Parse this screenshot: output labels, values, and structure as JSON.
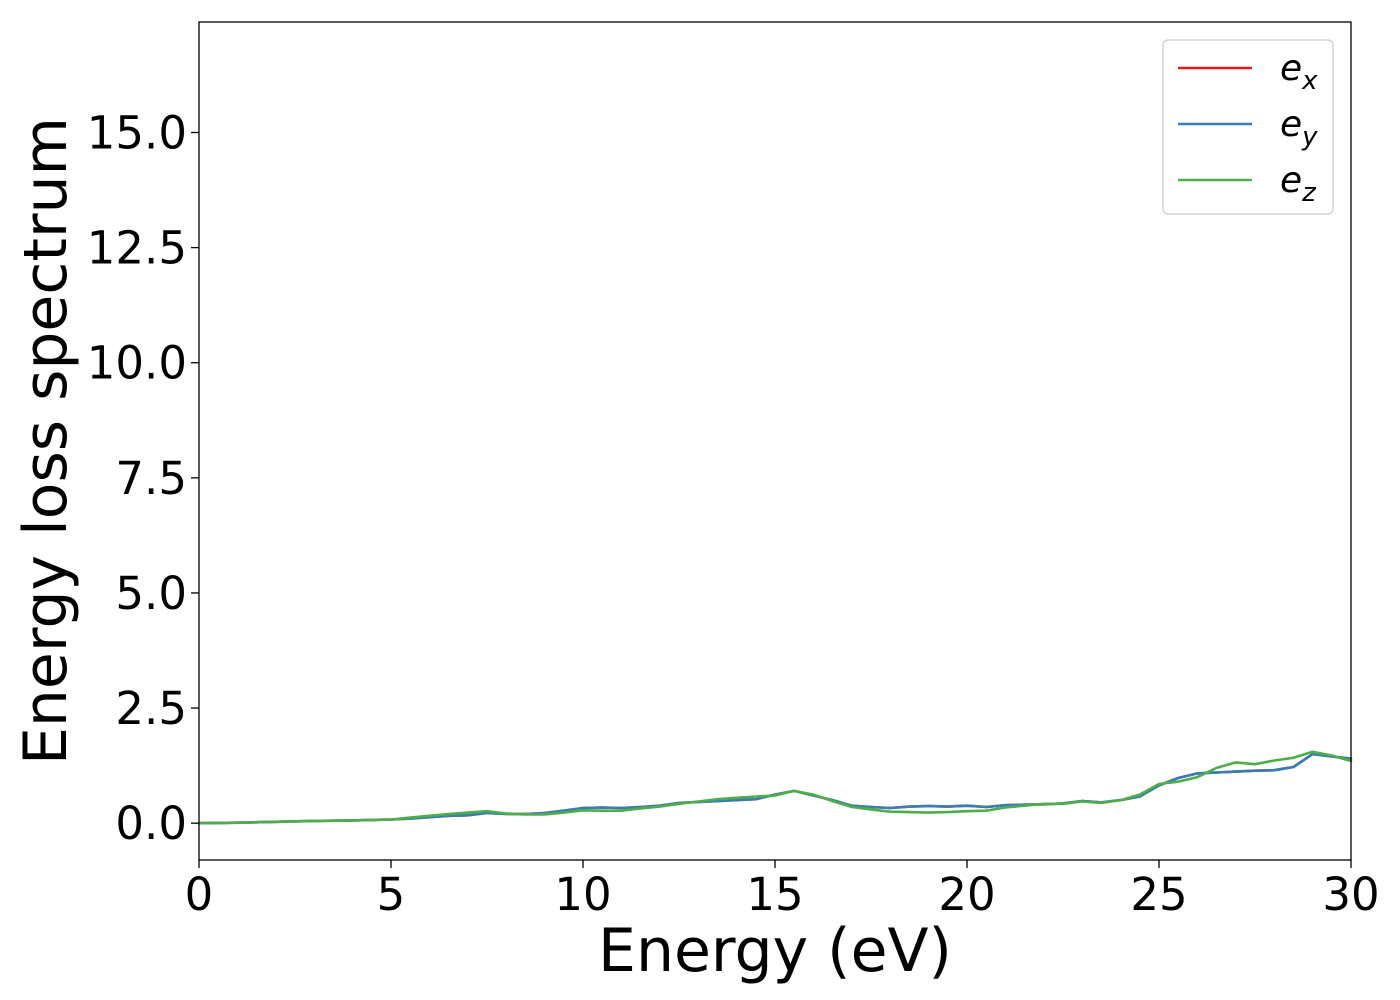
{
  "chart_data": {
    "type": "line",
    "xlabel": "Energy (eV)",
    "ylabel": "Energy loss spectrum",
    "xlim": [
      0,
      30
    ],
    "ylim": [
      -0.8,
      17.4
    ],
    "xticks": [
      0,
      5,
      10,
      15,
      20,
      25,
      30
    ],
    "xtick_labels": [
      "0",
      "5",
      "10",
      "15",
      "20",
      "25",
      "30"
    ],
    "yticks": [
      0.0,
      2.5,
      5.0,
      7.5,
      10.0,
      12.5,
      15.0
    ],
    "ytick_labels": [
      "0.0",
      "2.5",
      "5.0",
      "7.5",
      "10.0",
      "12.5",
      "15.0"
    ],
    "grid": false,
    "legend_position": "top-right",
    "x": [
      0,
      1,
      2,
      3,
      4,
      5,
      5.5,
      6,
      6.5,
      7,
      7.5,
      8,
      8.5,
      9,
      9.5,
      10,
      10.5,
      11,
      11.5,
      12,
      12.5,
      13,
      13.5,
      14,
      14.5,
      15,
      15.5,
      16,
      16.5,
      17,
      17.5,
      18,
      18.5,
      19,
      19.5,
      20,
      20.5,
      21,
      21.5,
      22,
      22.5,
      23,
      23.5,
      24,
      24.5,
      25,
      25.5,
      26,
      26.5,
      27,
      27.5,
      28,
      28.5,
      29,
      29.5,
      30
    ],
    "series": [
      {
        "name": "e",
        "name_sub": "x",
        "color": "#e41a1c",
        "values": [
          0.0,
          0.01,
          0.03,
          0.05,
          0.06,
          0.08,
          0.1,
          0.13,
          0.16,
          0.17,
          0.22,
          0.2,
          0.2,
          0.22,
          0.27,
          0.33,
          0.34,
          0.33,
          0.35,
          0.38,
          0.44,
          0.46,
          0.48,
          0.5,
          0.52,
          0.62,
          0.7,
          0.6,
          0.5,
          0.38,
          0.35,
          0.33,
          0.36,
          0.37,
          0.36,
          0.38,
          0.35,
          0.39,
          0.4,
          0.41,
          0.43,
          0.48,
          0.45,
          0.5,
          0.58,
          0.82,
          0.98,
          1.08,
          1.1,
          1.12,
          1.14,
          1.15,
          1.22,
          1.5,
          1.45,
          1.4
        ]
      },
      {
        "name": "e",
        "name_sub": "y",
        "color": "#377eb8",
        "values": [
          0.0,
          0.01,
          0.03,
          0.05,
          0.06,
          0.08,
          0.1,
          0.13,
          0.16,
          0.17,
          0.22,
          0.2,
          0.2,
          0.22,
          0.27,
          0.33,
          0.34,
          0.33,
          0.35,
          0.38,
          0.44,
          0.46,
          0.48,
          0.5,
          0.52,
          0.62,
          0.7,
          0.6,
          0.5,
          0.38,
          0.35,
          0.33,
          0.36,
          0.37,
          0.36,
          0.38,
          0.35,
          0.39,
          0.4,
          0.41,
          0.43,
          0.48,
          0.45,
          0.5,
          0.58,
          0.82,
          0.98,
          1.08,
          1.1,
          1.12,
          1.14,
          1.15,
          1.22,
          1.5,
          1.45,
          1.4
        ]
      },
      {
        "name": "e",
        "name_sub": "z",
        "color": "#4daf4a",
        "values": [
          0.0,
          0.01,
          0.03,
          0.05,
          0.06,
          0.08,
          0.12,
          0.16,
          0.2,
          0.23,
          0.26,
          0.21,
          0.19,
          0.19,
          0.23,
          0.28,
          0.27,
          0.27,
          0.32,
          0.36,
          0.42,
          0.47,
          0.52,
          0.55,
          0.58,
          0.6,
          0.7,
          0.62,
          0.48,
          0.35,
          0.3,
          0.25,
          0.24,
          0.23,
          0.24,
          0.26,
          0.27,
          0.34,
          0.38,
          0.42,
          0.42,
          0.47,
          0.44,
          0.5,
          0.62,
          0.85,
          0.9,
          1.0,
          1.2,
          1.32,
          1.28,
          1.36,
          1.42,
          1.55,
          1.47,
          1.35
        ]
      }
    ]
  }
}
